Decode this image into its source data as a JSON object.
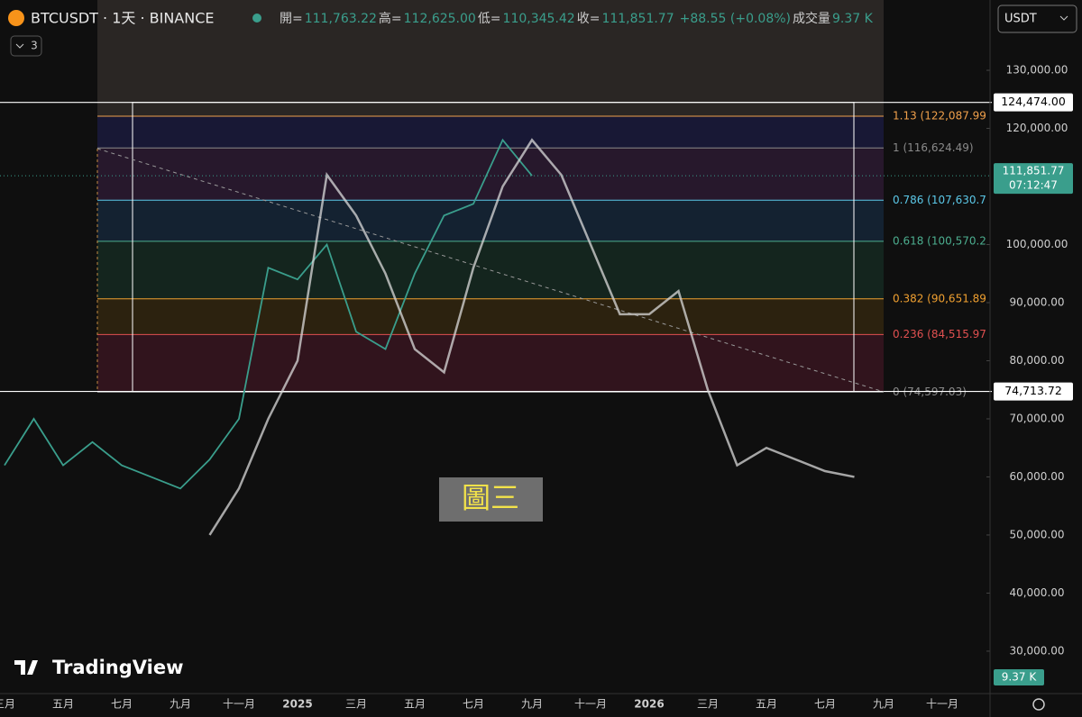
{
  "header": {
    "symbol": "BTCUSDT · 1天 · BINANCE",
    "open_label": "開=",
    "open": "111,763.22",
    "high_label": "高=",
    "high": "112,625.00",
    "low_label": "低=",
    "low": "110,345.42",
    "close_label": "收=",
    "close": "111,851.77",
    "change": "+88.55 (+0.08%)",
    "volume_label": "成交量",
    "volume": "9.37 K",
    "indicators": "3",
    "currency": "USDT",
    "brand": "TradingView",
    "annotation": "圖三"
  },
  "chart_data": {
    "type": "line",
    "categories": [
      "三月",
      null,
      "五月",
      null,
      "七月",
      null,
      "九月",
      null,
      "十一月",
      null,
      "2025",
      null,
      "三月",
      null,
      "五月",
      null,
      "七月",
      null,
      "九月",
      null,
      "十一月",
      null,
      "2026",
      null,
      "三月",
      null,
      "五月",
      null,
      "七月",
      null,
      "九月",
      null,
      "十一月",
      null
    ],
    "series": [
      {
        "color": "#3a9e8c",
        "values": [
          62000,
          70000,
          62000,
          66000,
          62000,
          60000,
          58000,
          63000,
          70000,
          96000,
          94000,
          100000,
          85000,
          82000,
          95000,
          105000,
          107000,
          118000,
          111851.77,
          null,
          null,
          null,
          null,
          null,
          null,
          null,
          null,
          null,
          null,
          null,
          null,
          null,
          null,
          null
        ]
      },
      {
        "color": "#d9d9d9",
        "values": [
          null,
          null,
          null,
          null,
          null,
          null,
          null,
          50000,
          58000,
          70000,
          80000,
          112000,
          105000,
          95000,
          82000,
          78000,
          96000,
          110000,
          118000,
          112000,
          100000,
          88000,
          88000,
          92000,
          75000,
          62000,
          65000,
          63000,
          61000,
          60000,
          null,
          null,
          null,
          null
        ]
      }
    ],
    "ylim": [
      22700,
      142100
    ],
    "yticks": [
      {
        "value": 30000,
        "label": "30,000.00"
      },
      {
        "value": 40000,
        "label": "40,000.00"
      },
      {
        "value": 50000,
        "label": "50,000.00"
      },
      {
        "value": 60000,
        "label": "60,000.00"
      },
      {
        "value": 70000,
        "label": "70,000.00"
      },
      {
        "value": 80000,
        "label": "80,000.00"
      },
      {
        "value": 90000,
        "label": "90,000.00"
      },
      {
        "value": 100000,
        "label": "100,000.00"
      },
      {
        "value": 120000,
        "label": "120,000.00"
      },
      {
        "value": 130000,
        "label": "130,000.00"
      }
    ],
    "fib_levels": [
      {
        "value": 122087.99,
        "label": "1.13 (122,087.99",
        "color": "#f0a04b"
      },
      {
        "value": 116624.49,
        "label": "1 (116,624.49)",
        "color": "#8a8a8a"
      },
      {
        "value": 107630.7,
        "label": "0.786 (107,630.7",
        "color": "#5bc8e8"
      },
      {
        "value": 100570.2,
        "label": "0.618 (100,570.2",
        "color": "#4cae8f"
      },
      {
        "value": 90651.89,
        "label": "0.382 (90,651.89",
        "color": "#f0a030"
      },
      {
        "value": 84515.97,
        "label": "0.236 (84,515.97",
        "color": "#e05050"
      },
      {
        "value": 74597.03,
        "label": "0 (74,597.03)",
        "color": "#8a8a8a"
      }
    ],
    "box": [
      {
        "value": 124474,
        "label": "124,474.00"
      },
      {
        "value": 74713.72,
        "label": "74,713.72"
      }
    ],
    "last_price": {
      "value": 111851.77,
      "label": "111,851.77",
      "countdown": "07:12:47"
    },
    "volume_badge": "9.37 K"
  }
}
